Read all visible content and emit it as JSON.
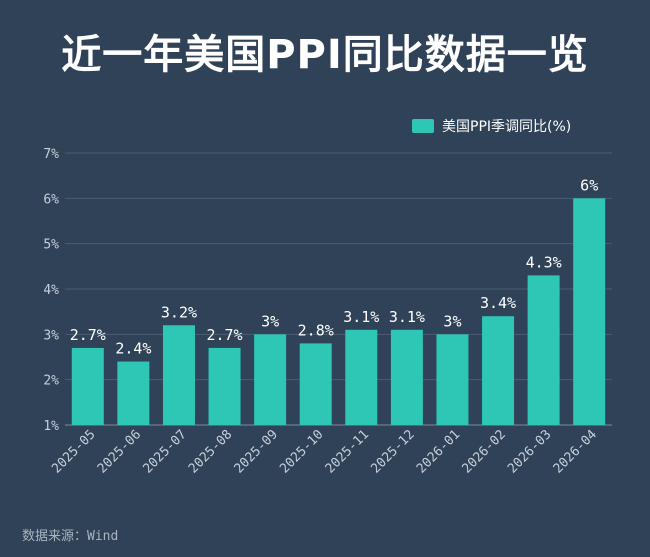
{
  "title": "近一年美国PPI同比数据一览",
  "source": "数据来源：Wind",
  "colors": {
    "background": "#2f4257",
    "bar": "#2ec7b6",
    "grid": "#4a5d72",
    "text": "#ffffff",
    "tick": "#c7d0da"
  },
  "chart_data": {
    "type": "bar",
    "categories": [
      "2025-05",
      "2025-06",
      "2025-07",
      "2025-08",
      "2025-09",
      "2025-10",
      "2025-11",
      "2025-12",
      "2026-01",
      "2026-02",
      "2026-03",
      "2026-04"
    ],
    "series": [
      {
        "name": "美国PPI季调同比(%)",
        "values": [
          2.7,
          2.4,
          3.2,
          2.7,
          3.0,
          2.8,
          3.1,
          3.1,
          3.0,
          3.4,
          4.3,
          6.0
        ]
      }
    ],
    "data_labels": [
      "2.7%",
      "2.4%",
      "3.2%",
      "2.7%",
      "3%",
      "2.8%",
      "3.1%",
      "3.1%",
      "3%",
      "3.4%",
      "4.3%",
      "6%"
    ],
    "y_ticks": [
      "1%",
      "2%",
      "3%",
      "4%",
      "5%",
      "6%",
      "7%"
    ],
    "ylim": [
      1,
      7
    ],
    "grid": true,
    "legend_position": "top-right"
  }
}
